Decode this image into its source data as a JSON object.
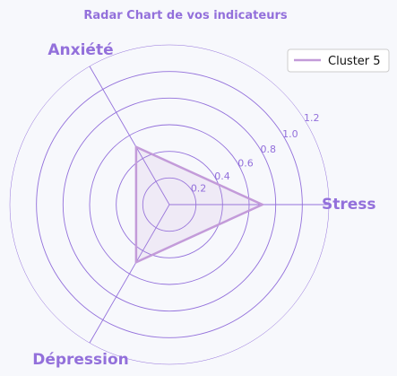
{
  "chart_data": {
    "type": "radar",
    "title": "Radar Chart de vos indicateurs",
    "axes": [
      "Stress",
      "Anxiété",
      "Dépression"
    ],
    "radial_ticks": [
      "0.2",
      "0.4",
      "0.6",
      "0.8",
      "1.0",
      "1.2"
    ],
    "radial_range": [
      0,
      1.2
    ],
    "series": [
      {
        "name": "Cluster 5",
        "values": [
          0.7,
          0.5,
          0.5
        ],
        "color": "#c39bd9"
      }
    ],
    "legend_position": "top-right",
    "grid": true
  },
  "colors": {
    "grid": "#9370db",
    "text": "#9370db",
    "fill": "#c39bd9"
  }
}
